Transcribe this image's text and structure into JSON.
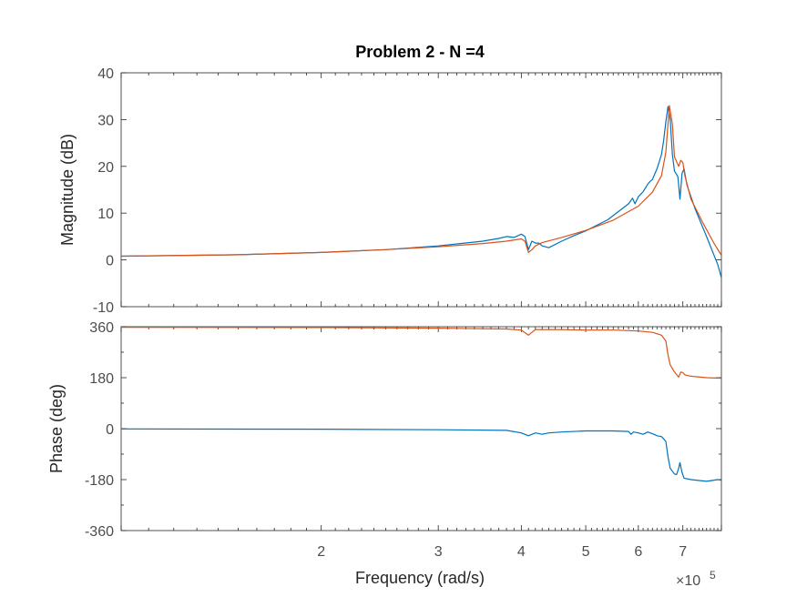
{
  "figure": {
    "title": "Problem 2 - N =4",
    "xlabel": "Frequency  (rad/s)",
    "exponent_base": "×10",
    "exponent_power": "5"
  },
  "chart_data": [
    {
      "type": "line",
      "panel": "magnitude",
      "title": "Problem 2 - N =4",
      "xlabel": "Frequency  (rad/s)",
      "ylabel": "Magnitude (dB)",
      "xscale": "log",
      "xlim": [
        100000,
        800000
      ],
      "ylim": [
        -10,
        40
      ],
      "yticks": [
        -10,
        0,
        10,
        20,
        30,
        40
      ],
      "xticks": [
        200000,
        300000,
        400000,
        500000,
        600000,
        700000
      ],
      "xtick_labels": [
        "2",
        "3",
        "4",
        "5",
        "6",
        "7"
      ],
      "colors": [
        "#0072BD",
        "#D95319"
      ],
      "series": [
        {
          "x": [
            100000,
            150000,
            200000,
            250000,
            300000,
            350000,
            370000,
            380000,
            390000,
            400000,
            405000,
            410000,
            415000,
            420000,
            425000,
            430000,
            440000,
            460000,
            480000,
            500000,
            540000,
            580000,
            588000,
            593000,
            600000,
            610000,
            620000,
            625000,
            630000,
            640000,
            650000,
            655000,
            660000,
            665000,
            670000,
            675000,
            680000,
            688000,
            693000,
            698000,
            703000,
            710000,
            730000,
            760000,
            790000,
            800000
          ],
          "y": [
            0.8,
            1.1,
            1.6,
            2.2,
            3.0,
            4.0,
            4.6,
            5.0,
            4.8,
            5.5,
            5.0,
            2.2,
            4.0,
            3.6,
            3.6,
            3.0,
            2.6,
            4.0,
            5.2,
            6.2,
            8.6,
            12.0,
            13.2,
            12.0,
            13.5,
            14.6,
            16.2,
            16.8,
            17.2,
            19.5,
            22.5,
            25.5,
            29.5,
            32.8,
            30.0,
            22.5,
            19.0,
            17.8,
            13.0,
            18.5,
            19.5,
            16.0,
            11.0,
            5.0,
            -1.0,
            -3.8
          ]
        },
        {
          "x": [
            100000,
            150000,
            200000,
            250000,
            300000,
            350000,
            380000,
            400000,
            405000,
            410000,
            415000,
            420000,
            430000,
            460000,
            500000,
            550000,
            600000,
            630000,
            650000,
            660000,
            668000,
            675000,
            680000,
            690000,
            695000,
            700000,
            705000,
            720000,
            750000,
            780000,
            800000
          ],
          "y": [
            0.8,
            1.1,
            1.6,
            2.2,
            2.8,
            3.5,
            4.0,
            4.5,
            4.0,
            1.6,
            2.2,
            3.0,
            3.7,
            4.8,
            6.3,
            8.5,
            11.5,
            14.5,
            18.0,
            23.0,
            33.0,
            29.0,
            22.0,
            20.0,
            21.3,
            20.8,
            18.0,
            13.0,
            8.0,
            3.5,
            1.0
          ]
        }
      ]
    },
    {
      "type": "line",
      "panel": "phase",
      "xlabel": "Frequency  (rad/s)",
      "ylabel": "Phase (deg)",
      "xscale": "log",
      "xlim": [
        100000,
        800000
      ],
      "ylim": [
        -360,
        360
      ],
      "yticks": [
        -360,
        -180,
        0,
        180,
        360
      ],
      "xticks": [
        200000,
        300000,
        400000,
        500000,
        600000,
        700000
      ],
      "xtick_labels": [
        "2",
        "3",
        "4",
        "5",
        "6",
        "7"
      ],
      "colors": [
        "#0072BD",
        "#D95319"
      ],
      "series": [
        {
          "x": [
            100000,
            200000,
            300000,
            380000,
            400000,
            410000,
            420000,
            430000,
            440000,
            460000,
            500000,
            550000,
            580000,
            585000,
            590000,
            600000,
            610000,
            620000,
            630000,
            640000,
            650000,
            660000,
            665000,
            670000,
            680000,
            685000,
            690000,
            693000,
            698000,
            703000,
            720000,
            760000,
            790000,
            800000
          ],
          "y": [
            -1,
            -2,
            -4,
            -6,
            -15,
            -25,
            -15,
            -20,
            -15,
            -12,
            -8,
            -8,
            -10,
            -20,
            -12,
            -15,
            -20,
            -12,
            -18,
            -25,
            -28,
            -45,
            -100,
            -140,
            -160,
            -162,
            -140,
            -120,
            -155,
            -175,
            -180,
            -186,
            -180,
            -182
          ]
        },
        {
          "x": [
            100000,
            200000,
            300000,
            380000,
            400000,
            410000,
            415000,
            420000,
            430000,
            460000,
            500000,
            550000,
            600000,
            630000,
            650000,
            660000,
            665000,
            670000,
            680000,
            690000,
            695000,
            700000,
            705000,
            720000,
            760000,
            800000
          ],
          "y": [
            358,
            357,
            355,
            352,
            348,
            330,
            340,
            350,
            350,
            350,
            348,
            348,
            345,
            340,
            330,
            310,
            260,
            225,
            200,
            182,
            200,
            198,
            190,
            185,
            180,
            178
          ]
        }
      ]
    }
  ]
}
